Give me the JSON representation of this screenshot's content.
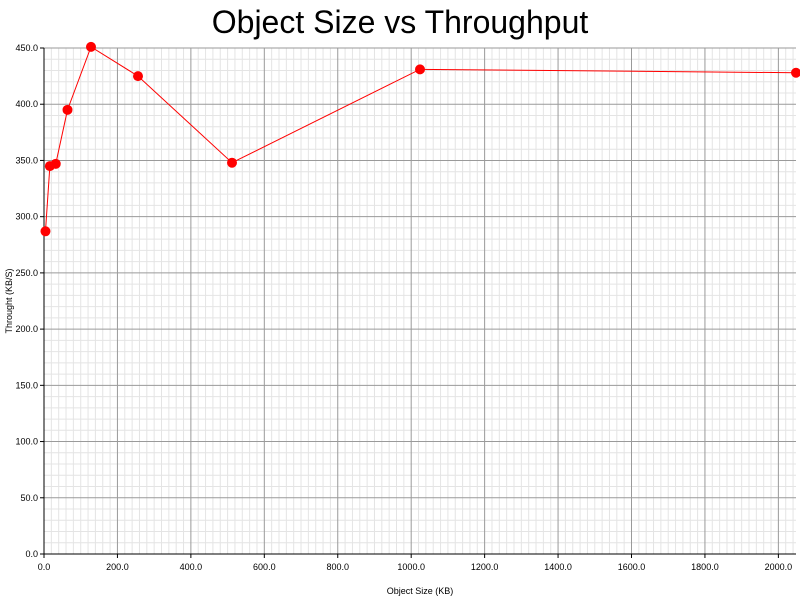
{
  "chart_data": {
    "type": "line",
    "title": "Object Size vs Throughput",
    "xlabel": "Object Size (KB)",
    "ylabel": "Throught (KB/S)",
    "xlim": [
      0,
      2048
    ],
    "ylim": [
      0,
      450
    ],
    "x_ticks": [
      "0.0",
      "200.0",
      "400.0",
      "600.0",
      "800.0",
      "1000.0",
      "1200.0",
      "1400.0",
      "1600.0",
      "1800.0",
      "2000.0"
    ],
    "y_ticks": [
      "0.0",
      "50.0",
      "100.0",
      "150.0",
      "200.0",
      "250.0",
      "300.0",
      "350.0",
      "400.0",
      "450.0"
    ],
    "grid": true,
    "series": [
      {
        "name": "Throughput",
        "color": "#ff0000",
        "x": [
          4,
          16,
          32,
          64,
          128,
          256,
          512,
          1024,
          2048
        ],
        "y": [
          287,
          345,
          347,
          395,
          451,
          425,
          348,
          431,
          428
        ]
      }
    ]
  }
}
